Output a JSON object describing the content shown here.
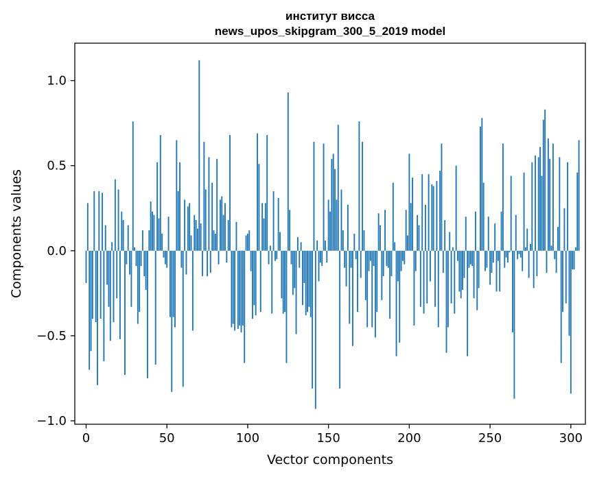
{
  "chart_data": {
    "type": "bar",
    "title_line1": "институт висса",
    "title_line2": "news_upos_skipgram_300_5_2019 model",
    "xlabel": "Vector components",
    "ylabel": "Components values",
    "xlim": [
      -7,
      309
    ],
    "ylim": [
      -1.02,
      1.22
    ],
    "xticks": [
      0,
      50,
      100,
      150,
      200,
      250,
      300
    ],
    "xtick_labels": [
      "0",
      "50",
      "100",
      "150",
      "200",
      "250",
      "300"
    ],
    "yticks": [
      -1.0,
      -0.5,
      0.0,
      0.5,
      1.0
    ],
    "ytick_labels": [
      "−1.0",
      "−0.5",
      "0.0",
      "0.5",
      "1.0"
    ],
    "bar_color": "#1f77b4",
    "values": [
      -0.19,
      0.28,
      -0.7,
      -0.59,
      -0.4,
      0.35,
      -0.42,
      -0.79,
      0.35,
      -0.4,
      0.34,
      -0.65,
      0.15,
      -0.2,
      -0.33,
      -0.53,
      0.05,
      -0.42,
      0.42,
      -0.28,
      0.36,
      -0.52,
      0.23,
      0.18,
      -0.73,
      -0.08,
      0.15,
      -0.14,
      -0.33,
      0.76,
      0.02,
      -0.09,
      -0.43,
      -0.36,
      -0.09,
      0.12,
      -0.15,
      -0.23,
      -0.75,
      0.12,
      0.29,
      0.23,
      0.21,
      -0.67,
      0.52,
      0.19,
      0.68,
      0.1,
      -0.04,
      -0.08,
      -0.1,
      0.2,
      -0.39,
      -0.83,
      -0.39,
      -0.45,
      0.65,
      0.35,
      0.52,
      -0.1,
      -0.8,
      0.3,
      -0.14,
      0.26,
      0.28,
      0.09,
      -0.47,
      0.21,
      0.18,
      0.13,
      1.12,
      0.16,
      -0.15,
      0.64,
      0.36,
      -0.15,
      0.55,
      -0.13,
      0.4,
      0.12,
      0.1,
      0.54,
      -0.08,
      0.3,
      0.32,
      0.21,
      0.28,
      -0.07,
      0.18,
      0.68,
      -0.45,
      -0.43,
      -0.47,
      0.17,
      -0.46,
      -0.44,
      -0.48,
      -0.44,
      -0.66,
      0.09,
      0.1,
      0.12,
      -0.12,
      -0.4,
      -0.32,
      -0.38,
      0.69,
      0.51,
      -0.36,
      0.28,
      0.19,
      0.28,
      0.68,
      -0.08,
      0.03,
      -0.37,
      0.35,
      -0.06,
      -0.05,
      0.31,
      0.11,
      -0.28,
      -0.37,
      -0.36,
      -0.66,
      0.93,
      0.24,
      -0.08,
      -0.26,
      -0.22,
      -0.49,
      0.08,
      -0.1,
      0.05,
      -0.32,
      -0.19,
      -0.38,
      -0.36,
      -0.33,
      -0.39,
      -0.81,
      0.64,
      -0.93,
      0.06,
      -0.18,
      -0.07,
      -0.09,
      0.63,
      0.06,
      -0.07,
      0.3,
      0.23,
      0.54,
      0.57,
      0.48,
      0.3,
      0.74,
      -0.81,
      0.36,
      0.12,
      -0.1,
      -0.21,
      0.27,
      -0.43,
      -0.1,
      -0.56,
      0.1,
      -0.05,
      -0.36,
      0.76,
      -0.16,
      0.64,
      0.12,
      -0.29,
      -0.45,
      -0.12,
      -0.06,
      -0.45,
      -0.09,
      -0.51,
      -0.36,
      0.22,
      0.15,
      -0.29,
      -0.15,
      0.24,
      -0.09,
      -0.1,
      -0.4,
      -0.15,
      0.4,
      0.05,
      -0.62,
      -0.18,
      -0.54,
      -0.12,
      -0.06,
      -0.08,
      0.24,
      0.09,
      0.57,
      0.28,
      0.43,
      -0.44,
      -0.12,
      0.21,
      0.15,
      -0.33,
      0.45,
      -0.37,
      0.27,
      -0.31,
      0.45,
      -0.18,
      0.39,
      0.38,
      -0.33,
      0.41,
      -0.45,
      0.47,
      0.63,
      -0.13,
      0.18,
      -0.6,
      -0.45,
      0.11,
      -0.31,
      0.02,
      -0.37,
      0.5,
      -0.06,
      -0.24,
      -0.28,
      -0.23,
      -0.16,
      0.2,
      -0.62,
      -0.1,
      -0.08,
      -0.09,
      -0.28,
      0.23,
      -0.35,
      -0.22,
      0.73,
      0.78,
      0.4,
      -0.12,
      -0.1,
      0.2,
      -0.2,
      -0.13,
      -0.07,
      0.16,
      -0.24,
      -0.06,
      -0.24,
      0.23,
      0.63,
      -0.1,
      -0.04,
      -0.07,
      -0.01,
      0.44,
      -0.48,
      -0.87,
      0.21,
      -0.05,
      -0.02,
      -0.04,
      -0.12,
      0.46,
      0.02,
      0.13,
      -0.16,
      0.04,
      0.52,
      -0.22,
      0.56,
      -0.15,
      0.55,
      0.61,
      0.44,
      0.77,
      0.83,
      -0.13,
      0.66,
      0.54,
      0.03,
      0.63,
      -0.05,
      -0.13,
      0.14,
      0.55,
      -0.66,
      -0.36,
      0.25,
      -0.31,
      0.52,
      -0.5,
      -0.84,
      -0.11,
      -0.11,
      0.02,
      0.46,
      0.65
    ]
  }
}
